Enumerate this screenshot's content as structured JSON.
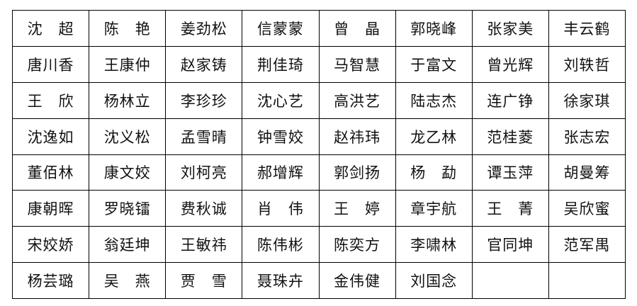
{
  "page": {
    "background_color": "#ffffff",
    "border_color": "#000000",
    "text_color": "#111111"
  },
  "table": {
    "description_name": "name-roster-table",
    "columns": 8,
    "rows": [
      [
        "沈　超",
        "陈　艳",
        "姜劲松",
        "信蒙蒙",
        "曾　晶",
        "郭晓峰",
        "张家美",
        "丰云鹤"
      ],
      [
        "唐川香",
        "王康仲",
        "赵家铸",
        "荆佳琦",
        "马智慧",
        "于富文",
        "曾光辉",
        "刘轶哲"
      ],
      [
        "王　欣",
        "杨林立",
        "李珍珍",
        "沈心艺",
        "高洪艺",
        "陆志杰",
        "连广铮",
        "徐家琪"
      ],
      [
        "沈逸如",
        "沈义松",
        "孟雪晴",
        "钟雪姣",
        "赵祎玮",
        "龙乙林",
        "范桂菱",
        "张志宏"
      ],
      [
        "董佰林",
        "康文姣",
        "刘柯亮",
        "郝增辉",
        "郭剑扬",
        "杨　勐",
        "谭玉萍",
        "胡曼筹"
      ],
      [
        "康朝晖",
        "罗晓镭",
        "费秋诚",
        "肖　伟",
        "王　婷",
        "章宇航",
        "王　菁",
        "吴欣蜜"
      ],
      [
        "宋姣娇",
        "翁廷坤",
        "王敏祎",
        "陈伟彬",
        "陈奕方",
        "李啸林",
        "官同坤",
        "范军禺"
      ],
      [
        "杨芸璐",
        "吴　燕",
        "贾　雪",
        "聂珠卉",
        "金伟健",
        "刘国念",
        "",
        ""
      ]
    ]
  }
}
